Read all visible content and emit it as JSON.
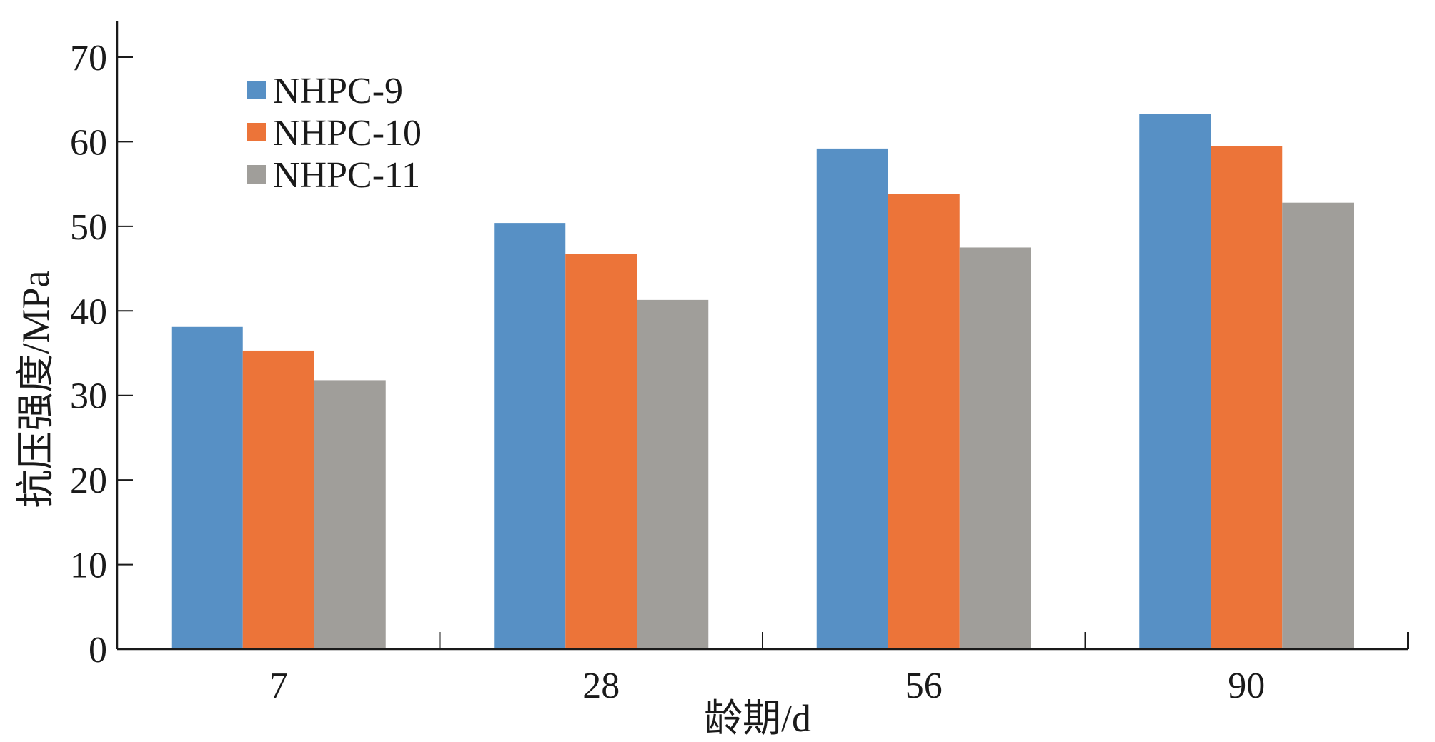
{
  "chart_data": {
    "type": "bar",
    "categories": [
      "7",
      "28",
      "56",
      "90"
    ],
    "series": [
      {
        "name": "NHPC-9",
        "color": "#5790c5",
        "values": [
          38.1,
          50.4,
          59.2,
          63.3
        ]
      },
      {
        "name": "NHPC-10",
        "color": "#ec7439",
        "values": [
          35.3,
          46.7,
          53.8,
          59.5
        ]
      },
      {
        "name": "NHPC-11",
        "color": "#a09e9a",
        "values": [
          31.8,
          41.3,
          47.5,
          52.8
        ]
      }
    ],
    "xlabel": "龄期/d",
    "ylabel": "抗压强度/MPa",
    "ylim": [
      0,
      70
    ],
    "yticks": [
      0,
      10,
      20,
      30,
      40,
      50,
      60,
      70
    ],
    "grid": false,
    "legend_position": "top-left"
  }
}
